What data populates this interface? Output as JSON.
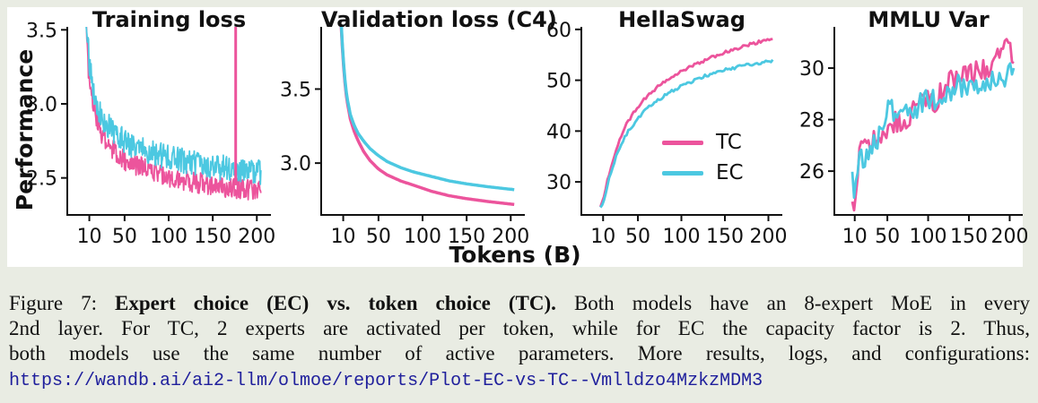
{
  "figure": {
    "ylabel": "Performance",
    "xlabel": "Tokens (B)",
    "colors": {
      "page_background": "#E9ECE3",
      "panel_background": "#FFFFFF",
      "tc_pink": "#EC549C",
      "ec_cyan": "#4CC8E1",
      "axis": "#111111",
      "url_navy": "#1F1F9C"
    }
  },
  "legend": {
    "position": "inside HellaSwag panel, center-right",
    "entries": [
      {
        "label": "TC",
        "color": "#EC549C"
      },
      {
        "label": "EC",
        "color": "#4CC8E1"
      }
    ]
  },
  "chart_data": [
    {
      "type": "line",
      "title": "Training loss",
      "xlim": [
        -15,
        216
      ],
      "ylim": [
        2.25,
        3.52
      ],
      "xticks": [
        10,
        50,
        100,
        150,
        200
      ],
      "xtick_labels": [
        "10",
        "50",
        "100",
        "150",
        "200"
      ],
      "yticks": [
        2.5,
        3.0,
        3.5
      ],
      "ytick_labels": [
        "2.5",
        "3.0",
        "3.5"
      ],
      "grid": false,
      "series": [
        {
          "name": "TC",
          "color": "#EC549C",
          "width": 1.8,
          "jitter": 0.07,
          "step": 0.6,
          "seed": 3,
          "points": [
            [
              6,
              3.55
            ],
            [
              8,
              3.32
            ],
            [
              10,
              3.15
            ],
            [
              13,
              3.02
            ],
            [
              16,
              2.94
            ],
            [
              20,
              2.86
            ],
            [
              25,
              2.79
            ],
            [
              30,
              2.74
            ],
            [
              40,
              2.67
            ],
            [
              50,
              2.62
            ],
            [
              65,
              2.58
            ],
            [
              80,
              2.55
            ],
            [
              100,
              2.51
            ],
            [
              120,
              2.48
            ],
            [
              140,
              2.46
            ],
            [
              160,
              2.44
            ],
            [
              180,
              2.43
            ],
            [
              205,
              2.41
            ]
          ]
        },
        {
          "name": "EC",
          "color": "#4CC8E1",
          "width": 1.8,
          "jitter": 0.085,
          "step": 0.6,
          "seed": 11,
          "points": [
            [
              6,
              3.6
            ],
            [
              8,
              3.45
            ],
            [
              10,
              3.28
            ],
            [
              13,
              3.15
            ],
            [
              16,
              3.06
            ],
            [
              20,
              2.98
            ],
            [
              25,
              2.9
            ],
            [
              30,
              2.86
            ],
            [
              40,
              2.79
            ],
            [
              50,
              2.75
            ],
            [
              65,
              2.7
            ],
            [
              80,
              2.67
            ],
            [
              100,
              2.64
            ],
            [
              120,
              2.61
            ],
            [
              140,
              2.59
            ],
            [
              160,
              2.57
            ],
            [
              180,
              2.56
            ],
            [
              205,
              2.54
            ]
          ]
        }
      ],
      "spike": {
        "note": "pink vertical loss spike",
        "x": 176,
        "y_from": 2.45,
        "y_to": 3.52,
        "color": "#EC549C",
        "width": 3
      }
    },
    {
      "type": "line",
      "title": "Validation loss (C4)",
      "xlim": [
        -15,
        216
      ],
      "ylim": [
        2.65,
        3.92
      ],
      "xticks": [
        10,
        50,
        100,
        150,
        200
      ],
      "xtick_labels": [
        "10",
        "50",
        "100",
        "150",
        "200"
      ],
      "yticks": [
        3.0,
        3.5
      ],
      "ytick_labels": [
        "3.0",
        "3.5"
      ],
      "grid": false,
      "series": [
        {
          "name": "TC",
          "color": "#EC549C",
          "width": 3.5,
          "jitter": 0,
          "step": 1.5,
          "seed": 1,
          "points": [
            [
              7.5,
              3.95
            ],
            [
              9,
              3.78
            ],
            [
              11,
              3.6
            ],
            [
              14,
              3.43
            ],
            [
              18,
              3.3
            ],
            [
              22,
              3.22
            ],
            [
              27,
              3.15
            ],
            [
              33,
              3.08
            ],
            [
              40,
              3.02
            ],
            [
              50,
              2.96
            ],
            [
              60,
              2.92
            ],
            [
              75,
              2.88
            ],
            [
              90,
              2.85
            ],
            [
              110,
              2.81
            ],
            [
              130,
              2.78
            ],
            [
              150,
              2.76
            ],
            [
              175,
              2.74
            ],
            [
              205,
              2.72
            ]
          ]
        },
        {
          "name": "EC",
          "color": "#4CC8E1",
          "width": 3.5,
          "jitter": 0,
          "step": 1.5,
          "seed": 2,
          "points": [
            [
              7.5,
              3.97
            ],
            [
              9,
              3.8
            ],
            [
              11,
              3.62
            ],
            [
              14,
              3.45
            ],
            [
              18,
              3.33
            ],
            [
              22,
              3.26
            ],
            [
              27,
              3.2
            ],
            [
              33,
              3.15
            ],
            [
              40,
              3.1
            ],
            [
              50,
              3.05
            ],
            [
              60,
              3.01
            ],
            [
              75,
              2.97
            ],
            [
              90,
              2.94
            ],
            [
              110,
              2.91
            ],
            [
              130,
              2.88
            ],
            [
              150,
              2.86
            ],
            [
              175,
              2.84
            ],
            [
              205,
              2.82
            ]
          ]
        }
      ]
    },
    {
      "type": "line",
      "title": "HellaSwag",
      "xlim": [
        -15,
        216
      ],
      "ylim": [
        23.5,
        60.5
      ],
      "xticks": [
        10,
        50,
        100,
        150,
        200
      ],
      "xtick_labels": [
        "10",
        "50",
        "100",
        "150",
        "200"
      ],
      "yticks": [
        30,
        40,
        50,
        60
      ],
      "ytick_labels": [
        "30",
        "40",
        "50",
        "60"
      ],
      "grid": false,
      "show_legend": true,
      "series": [
        {
          "name": "TC",
          "color": "#EC549C",
          "width": 2.8,
          "jitter": 0.3,
          "step": 2,
          "seed": 5,
          "points": [
            [
              7,
              25.2
            ],
            [
              10,
              26.3
            ],
            [
              13,
              28.5
            ],
            [
              16,
              31
            ],
            [
              20,
              33.5
            ],
            [
              25,
              36.5
            ],
            [
              30,
              38.8
            ],
            [
              35,
              40.7
            ],
            [
              40,
              42.2
            ],
            [
              50,
              44.8
            ],
            [
              60,
              46.8
            ],
            [
              70,
              48.3
            ],
            [
              85,
              50.2
            ],
            [
              100,
              51.7
            ],
            [
              115,
              53
            ],
            [
              130,
              54.2
            ],
            [
              150,
              55.5
            ],
            [
              170,
              56.6
            ],
            [
              190,
              57.6
            ],
            [
              205,
              58.3
            ]
          ]
        },
        {
          "name": "EC",
          "color": "#4CC8E1",
          "width": 2.8,
          "jitter": 0.3,
          "step": 2,
          "seed": 9,
          "points": [
            [
              7,
              25.0
            ],
            [
              10,
              25.8
            ],
            [
              13,
              27.8
            ],
            [
              16,
              30
            ],
            [
              20,
              32.3
            ],
            [
              25,
              35
            ],
            [
              30,
              37
            ],
            [
              35,
              38.8
            ],
            [
              40,
              40.2
            ],
            [
              50,
              42.5
            ],
            [
              60,
              44.3
            ],
            [
              70,
              45.7
            ],
            [
              85,
              47.5
            ],
            [
              100,
              48.8
            ],
            [
              115,
              50
            ],
            [
              130,
              51
            ],
            [
              150,
              52
            ],
            [
              170,
              52.8
            ],
            [
              190,
              53.4
            ],
            [
              205,
              53.8
            ]
          ]
        }
      ]
    },
    {
      "type": "line",
      "title": "MMLU Var",
      "xlim": [
        -15,
        216
      ],
      "ylim": [
        24.3,
        31.6
      ],
      "xticks": [
        10,
        50,
        100,
        150,
        200
      ],
      "xtick_labels": [
        "10",
        "50",
        "100",
        "150",
        "200"
      ],
      "yticks": [
        26,
        28,
        30
      ],
      "ytick_labels": [
        "26",
        "28",
        "30"
      ],
      "grid": false,
      "series": [
        {
          "name": "TC",
          "color": "#EC549C",
          "width": 2.8,
          "jitter": 0.45,
          "step": 2.2,
          "seed": 13,
          "points": [
            [
              7,
              24.8
            ],
            [
              10,
              24.9
            ],
            [
              14,
              26.3
            ],
            [
              18,
              26.8
            ],
            [
              24,
              27.2
            ],
            [
              30,
              27.0
            ],
            [
              38,
              27.4
            ],
            [
              46,
              27.5
            ],
            [
              55,
              27.8
            ],
            [
              65,
              28.0
            ],
            [
              75,
              27.9
            ],
            [
              85,
              28.6
            ],
            [
              95,
              28.8
            ],
            [
              105,
              28.6
            ],
            [
              115,
              29.0
            ],
            [
              125,
              29.6
            ],
            [
              135,
              29.5
            ],
            [
              145,
              30.0
            ],
            [
              155,
              29.8
            ],
            [
              165,
              30.0
            ],
            [
              175,
              29.9
            ],
            [
              185,
              30.3
            ],
            [
              195,
              31.0
            ],
            [
              205,
              30.5
            ]
          ]
        },
        {
          "name": "EC",
          "color": "#4CC8E1",
          "width": 2.8,
          "jitter": 0.45,
          "step": 2.2,
          "seed": 21,
          "points": [
            [
              7,
              25.8
            ],
            [
              10,
              24.9
            ],
            [
              14,
              26.2
            ],
            [
              18,
              26.6
            ],
            [
              24,
              26.5
            ],
            [
              30,
              27.1
            ],
            [
              38,
              27.3
            ],
            [
              46,
              28.2
            ],
            [
              55,
              28.4
            ],
            [
              65,
              28.3
            ],
            [
              75,
              28.1
            ],
            [
              85,
              28.5
            ],
            [
              95,
              28.7
            ],
            [
              105,
              28.8
            ],
            [
              115,
              28.6
            ],
            [
              125,
              29.1
            ],
            [
              135,
              29.4
            ],
            [
              145,
              29.2
            ],
            [
              155,
              29.5
            ],
            [
              165,
              29.4
            ],
            [
              175,
              29.6
            ],
            [
              185,
              29.3
            ],
            [
              195,
              29.6
            ],
            [
              205,
              30.2
            ]
          ]
        }
      ]
    }
  ],
  "caption": {
    "line1_prefix": "Figure 7: ",
    "line1_bold": "Expert choice (EC) vs. token choice (TC).",
    "line1_rest": " Both models have an 8-expert MoE in every",
    "line2": "2nd layer. For TC, 2 experts are activated per token, while for EC the capacity factor is 2. Thus,",
    "line3": "both models use the same number of active parameters. More results, logs, and configurations:",
    "url": "https://wandb.ai/ai2-llm/olmoe/reports/Plot-EC-vs-TC--Vmlldzo4MzkzMDM3"
  }
}
